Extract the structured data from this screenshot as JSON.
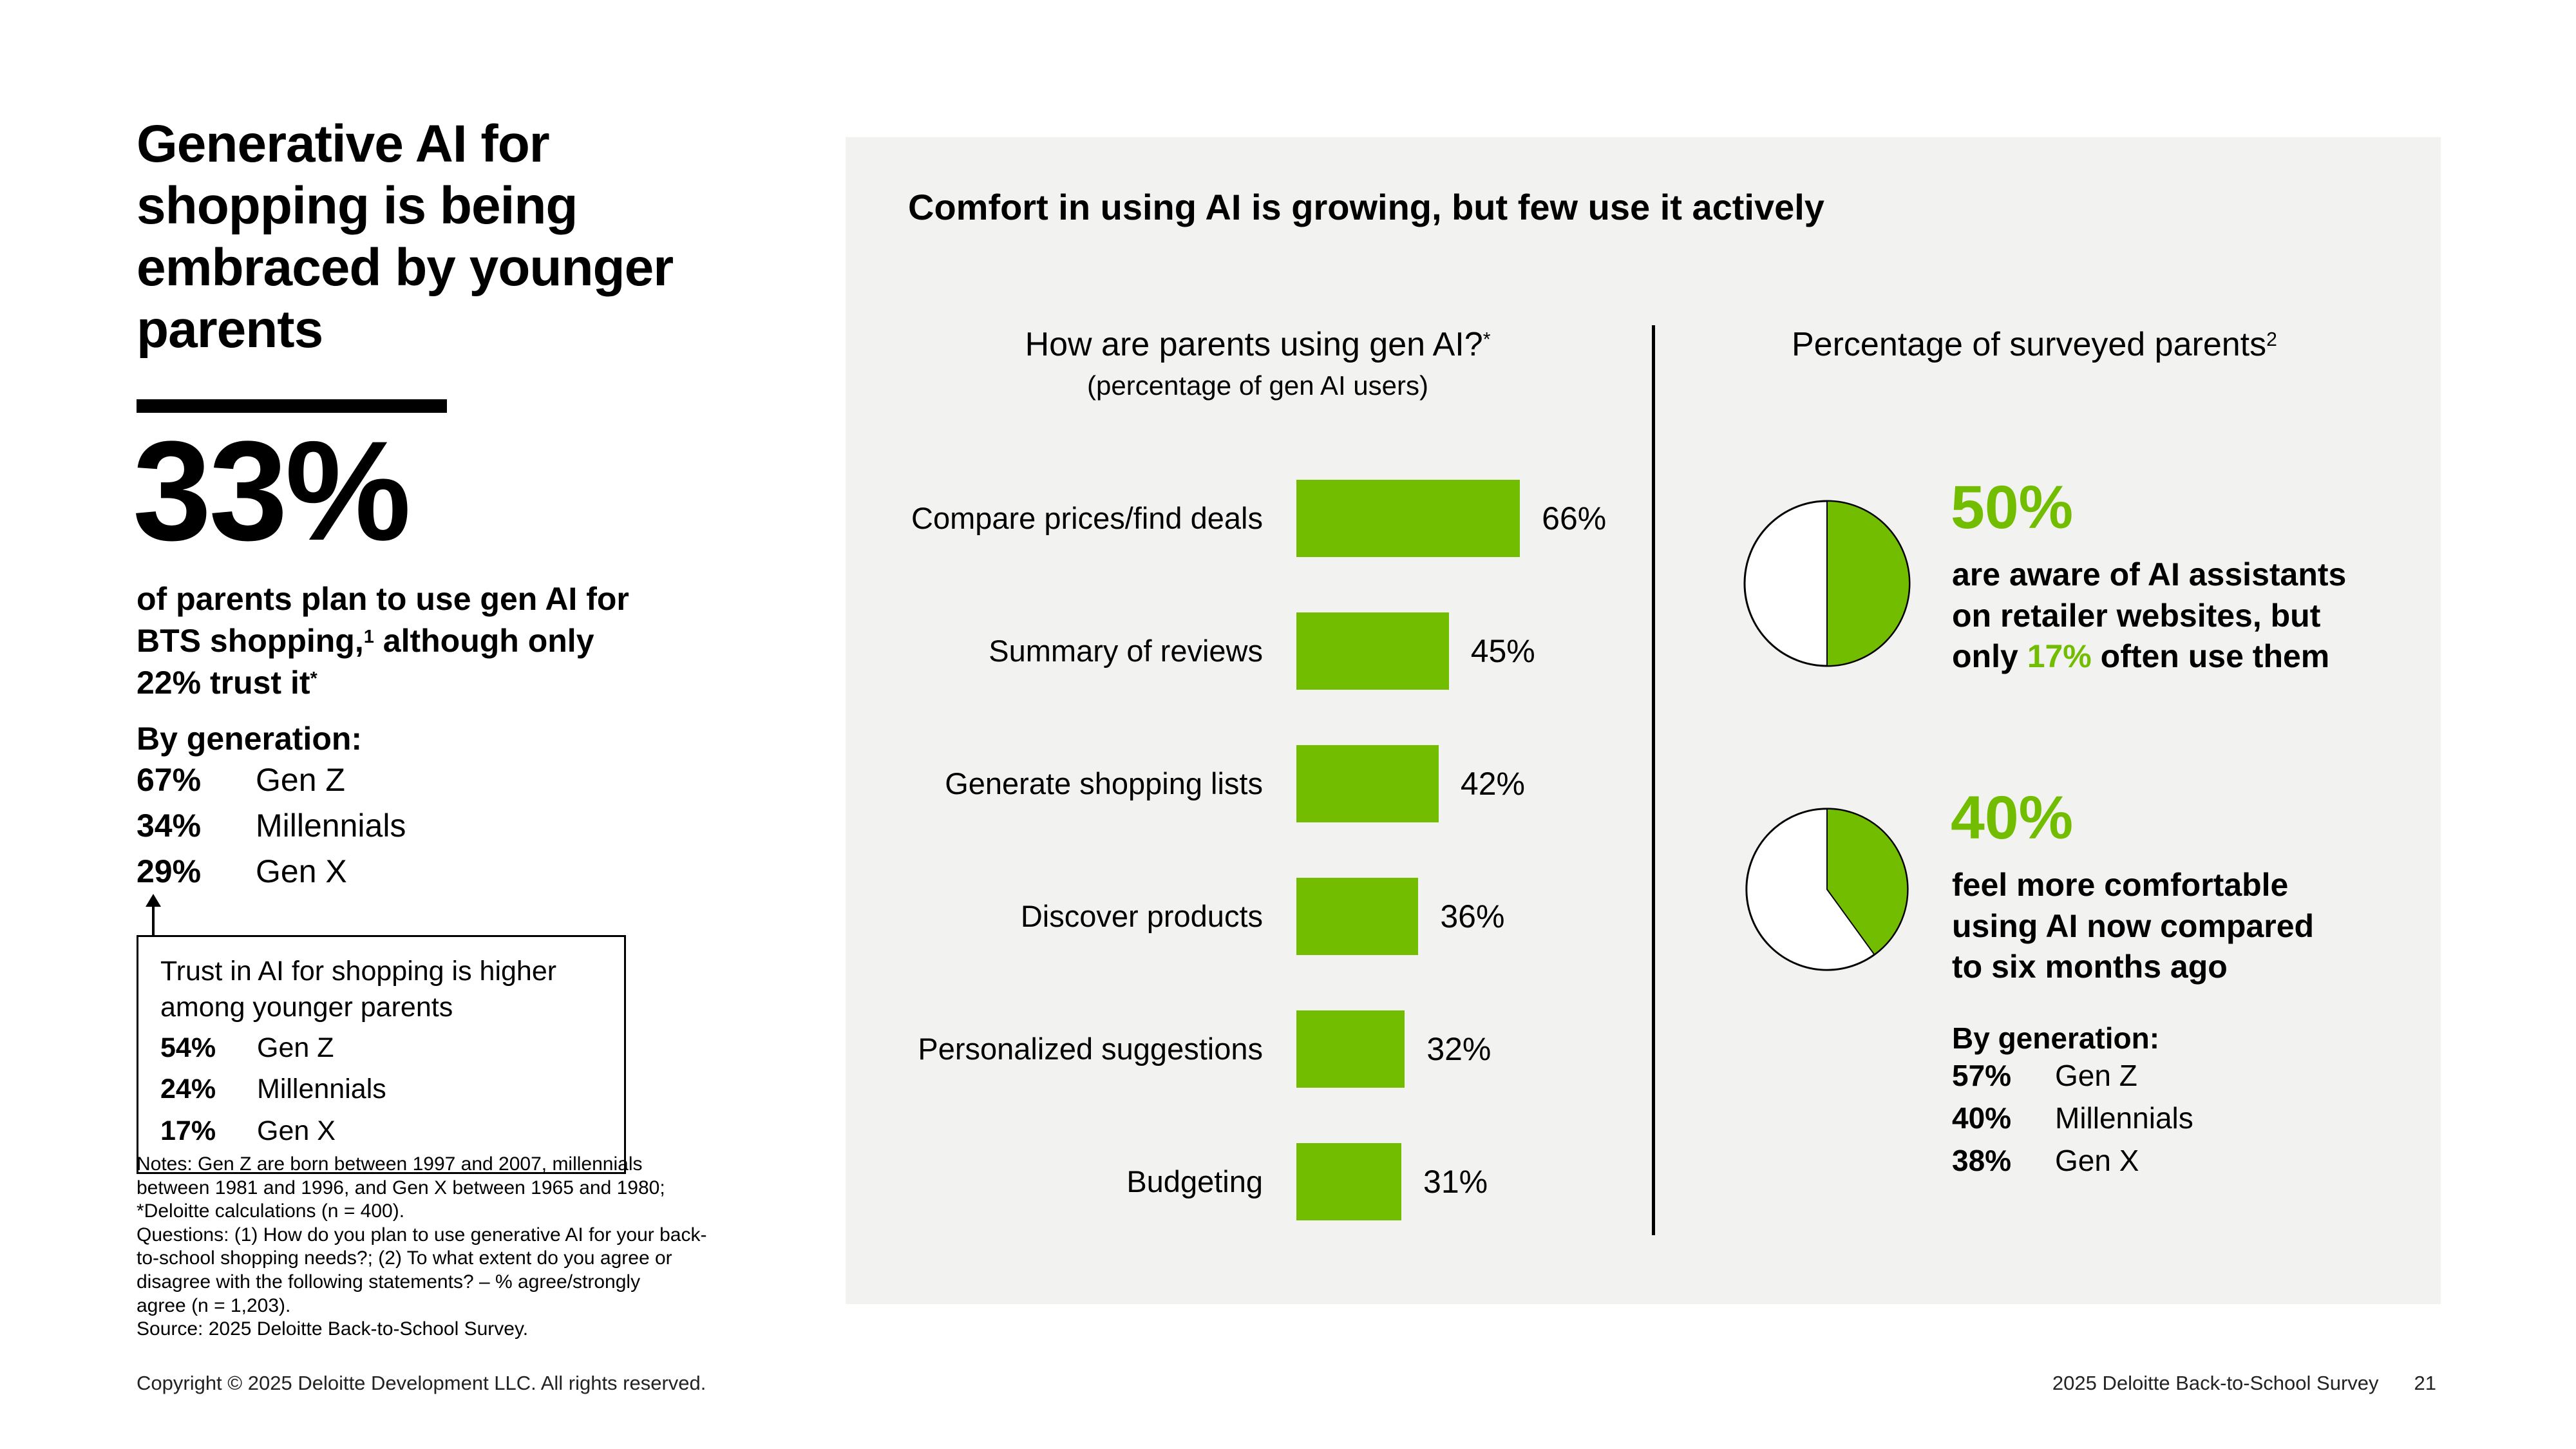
{
  "accent_color": "#73BD00",
  "panel_bg": "#F2F2F0",
  "left": {
    "headline": "Generative AI for\nshopping is being\nembraced by younger\nparents",
    "big_stat": "33%",
    "stat_para_parts": [
      {
        "t": "of parents plan to use gen AI for\nBTS shopping,"
      },
      {
        "t": "1",
        "sup": true
      },
      {
        "t": " although only\n"
      },
      {
        "t": "22%",
        "bold": true
      },
      {
        "t": " trust it"
      },
      {
        "t": "*",
        "sup": true
      }
    ],
    "by_generation_label": "By generation:",
    "generation_rows": [
      {
        "value": "67%",
        "label": "Gen Z"
      },
      {
        "value": "34%",
        "label": "Millennials"
      },
      {
        "value": "29%",
        "label": "Gen X"
      }
    ],
    "callout": {
      "text": "Trust in AI for shopping is higher\namong younger parents",
      "rows": [
        {
          "value": "54%",
          "label": "Gen Z"
        },
        {
          "value": "24%",
          "label": "Millennials"
        },
        {
          "value": "17%",
          "label": "Gen X"
        }
      ]
    },
    "notes": [
      "Notes: Gen Z are born between 1997 and 2007, millennials\nbetween 1981 and 1996, and Gen X between 1965 and 1980;\n*Deloitte calculations (n = 400).",
      "Questions: (1) How do you plan to use generative AI for your back-\nto-school shopping needs?; (2) To what extent do you agree or\ndisagree with the following statements? – % agree/strongly\nagree  (n = 1,203).",
      "Source: 2025 Deloitte Back-to-School Survey."
    ]
  },
  "panel": {
    "header": "Comfort in using AI is growing, but few use it actively",
    "bar_section": {
      "title": "How are parents using gen AI?",
      "title_sup": "*",
      "subtitle": "(percentage of gen AI users)"
    },
    "pie_section": {
      "title": "Percentage of surveyed parents",
      "title_sup": "2",
      "stat1": {
        "value": "50%",
        "text_parts": [
          {
            "t": "are aware of AI assistants\non retailer websites, but\nonly "
          },
          {
            "t": "17%",
            "accent": true,
            "bold": true
          },
          {
            "t": " often use them"
          }
        ]
      },
      "stat2": {
        "value": "40%",
        "text": "feel more comfortable\nusing AI now compared\nto six months ago",
        "by_generation_label": "By generation:",
        "generation_rows": [
          {
            "value": "57%",
            "label": "Gen Z"
          },
          {
            "value": "40%",
            "label": "Millennials"
          },
          {
            "value": "38%",
            "label": "Gen X"
          }
        ]
      }
    }
  },
  "footer": {
    "copyright": "Copyright © 2025 Deloitte Development LLC. All rights reserved.",
    "survey": "2025 Deloitte Back-to-School Survey",
    "page_number": "21"
  },
  "chart_data": [
    {
      "type": "bar",
      "orientation": "horizontal",
      "title": "How are parents using gen AI?*",
      "subtitle": "(percentage of gen AI users)",
      "categories": [
        "Compare prices/find deals",
        "Summary of reviews",
        "Generate shopping lists",
        "Discover products",
        "Personalized suggestions",
        "Budgeting"
      ],
      "values": [
        66,
        45,
        42,
        36,
        32,
        31
      ],
      "value_labels": [
        "66%",
        "45%",
        "42%",
        "36%",
        "32%",
        "31%"
      ],
      "unit": "%",
      "xlim": [
        0,
        100
      ],
      "bar_color": "#73BD00",
      "grid": false
    },
    {
      "type": "pie",
      "title": "Percentage of surveyed parents2 — AI assistant awareness",
      "slices": [
        {
          "label": "are aware of AI assistants on retailer websites",
          "value": 50,
          "color": "#73BD00"
        },
        {
          "label": "other",
          "value": 50,
          "color": "#FFFFFF"
        }
      ],
      "annotation": "50% are aware of AI assistants on retailer websites, but only 17% often use them"
    },
    {
      "type": "pie",
      "title": "Percentage of surveyed parents2 — comfort using AI",
      "slices": [
        {
          "label": "feel more comfortable using AI now compared to six months ago",
          "value": 40,
          "color": "#73BD00"
        },
        {
          "label": "other",
          "value": 60,
          "color": "#FFFFFF"
        }
      ],
      "annotation": "40% feel more comfortable using AI now compared to six months ago; by generation: 57% Gen Z, 40% Millennials, 38% Gen X"
    }
  ]
}
